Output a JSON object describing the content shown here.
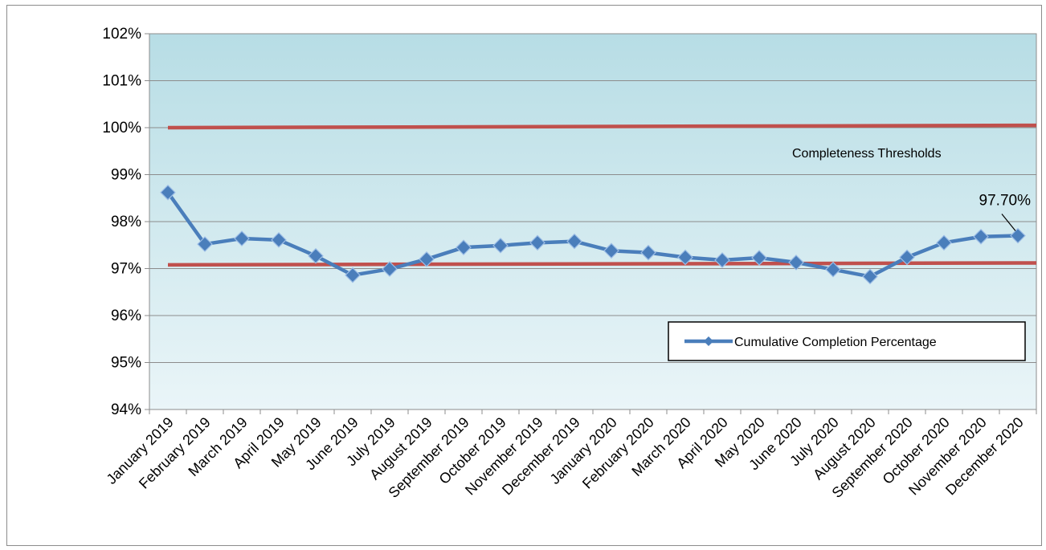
{
  "chart_data": {
    "type": "line",
    "title": "",
    "xlabel": "",
    "ylabel": "",
    "categories": [
      "January 2019",
      "February 2019",
      "March 2019",
      "April 2019",
      "May 2019",
      "June 2019",
      "July 2019",
      "August 2019",
      "September 2019",
      "October 2019",
      "November 2019",
      "December 2019",
      "January 2020",
      "February 2020",
      "March 2020",
      "April 2020",
      "May 2020",
      "June 2020",
      "July 2020",
      "August 2020",
      "September 2020",
      "October 2020",
      "November 2020",
      "December 2020"
    ],
    "ylim": [
      0.94,
      1.02
    ],
    "yticks": [
      0.94,
      0.95,
      0.96,
      0.97,
      0.98,
      0.99,
      1.0,
      1.01,
      1.02
    ],
    "ytick_labels": [
      "94%",
      "95%",
      "96%",
      "97%",
      "98%",
      "99%",
      "100%",
      "101%",
      "102%"
    ],
    "grid": true,
    "series": [
      {
        "name": "Cumulative Completion Percentage",
        "color": "#4a7ebb",
        "values": [
          0.9862,
          0.9752,
          0.9764,
          0.9761,
          0.9727,
          0.9686,
          0.9699,
          0.972,
          0.9745,
          0.9749,
          0.9755,
          0.9758,
          0.9738,
          0.9734,
          0.9724,
          0.9718,
          0.9723,
          0.9713,
          0.9698,
          0.9683,
          0.9724,
          0.9755,
          0.9768,
          0.977
        ]
      }
    ],
    "thresholds": [
      {
        "y_start": 1.0,
        "y_end": 1.0005,
        "x_start_index": 0,
        "color": "#c0504d"
      },
      {
        "y_start": 0.9708,
        "y_end": 0.9712,
        "x_start_index": 0,
        "color": "#c0504d"
      }
    ],
    "threshold_label": "Completeness   Thresholds",
    "annotation": {
      "text": "97.70%",
      "point_index": 23
    },
    "legend": {
      "placement": "bottom-right",
      "label": "Cumulative Completion Percentage"
    },
    "plot_background": {
      "top": "#b7dde5",
      "bottom": "#eaf5f8"
    }
  }
}
